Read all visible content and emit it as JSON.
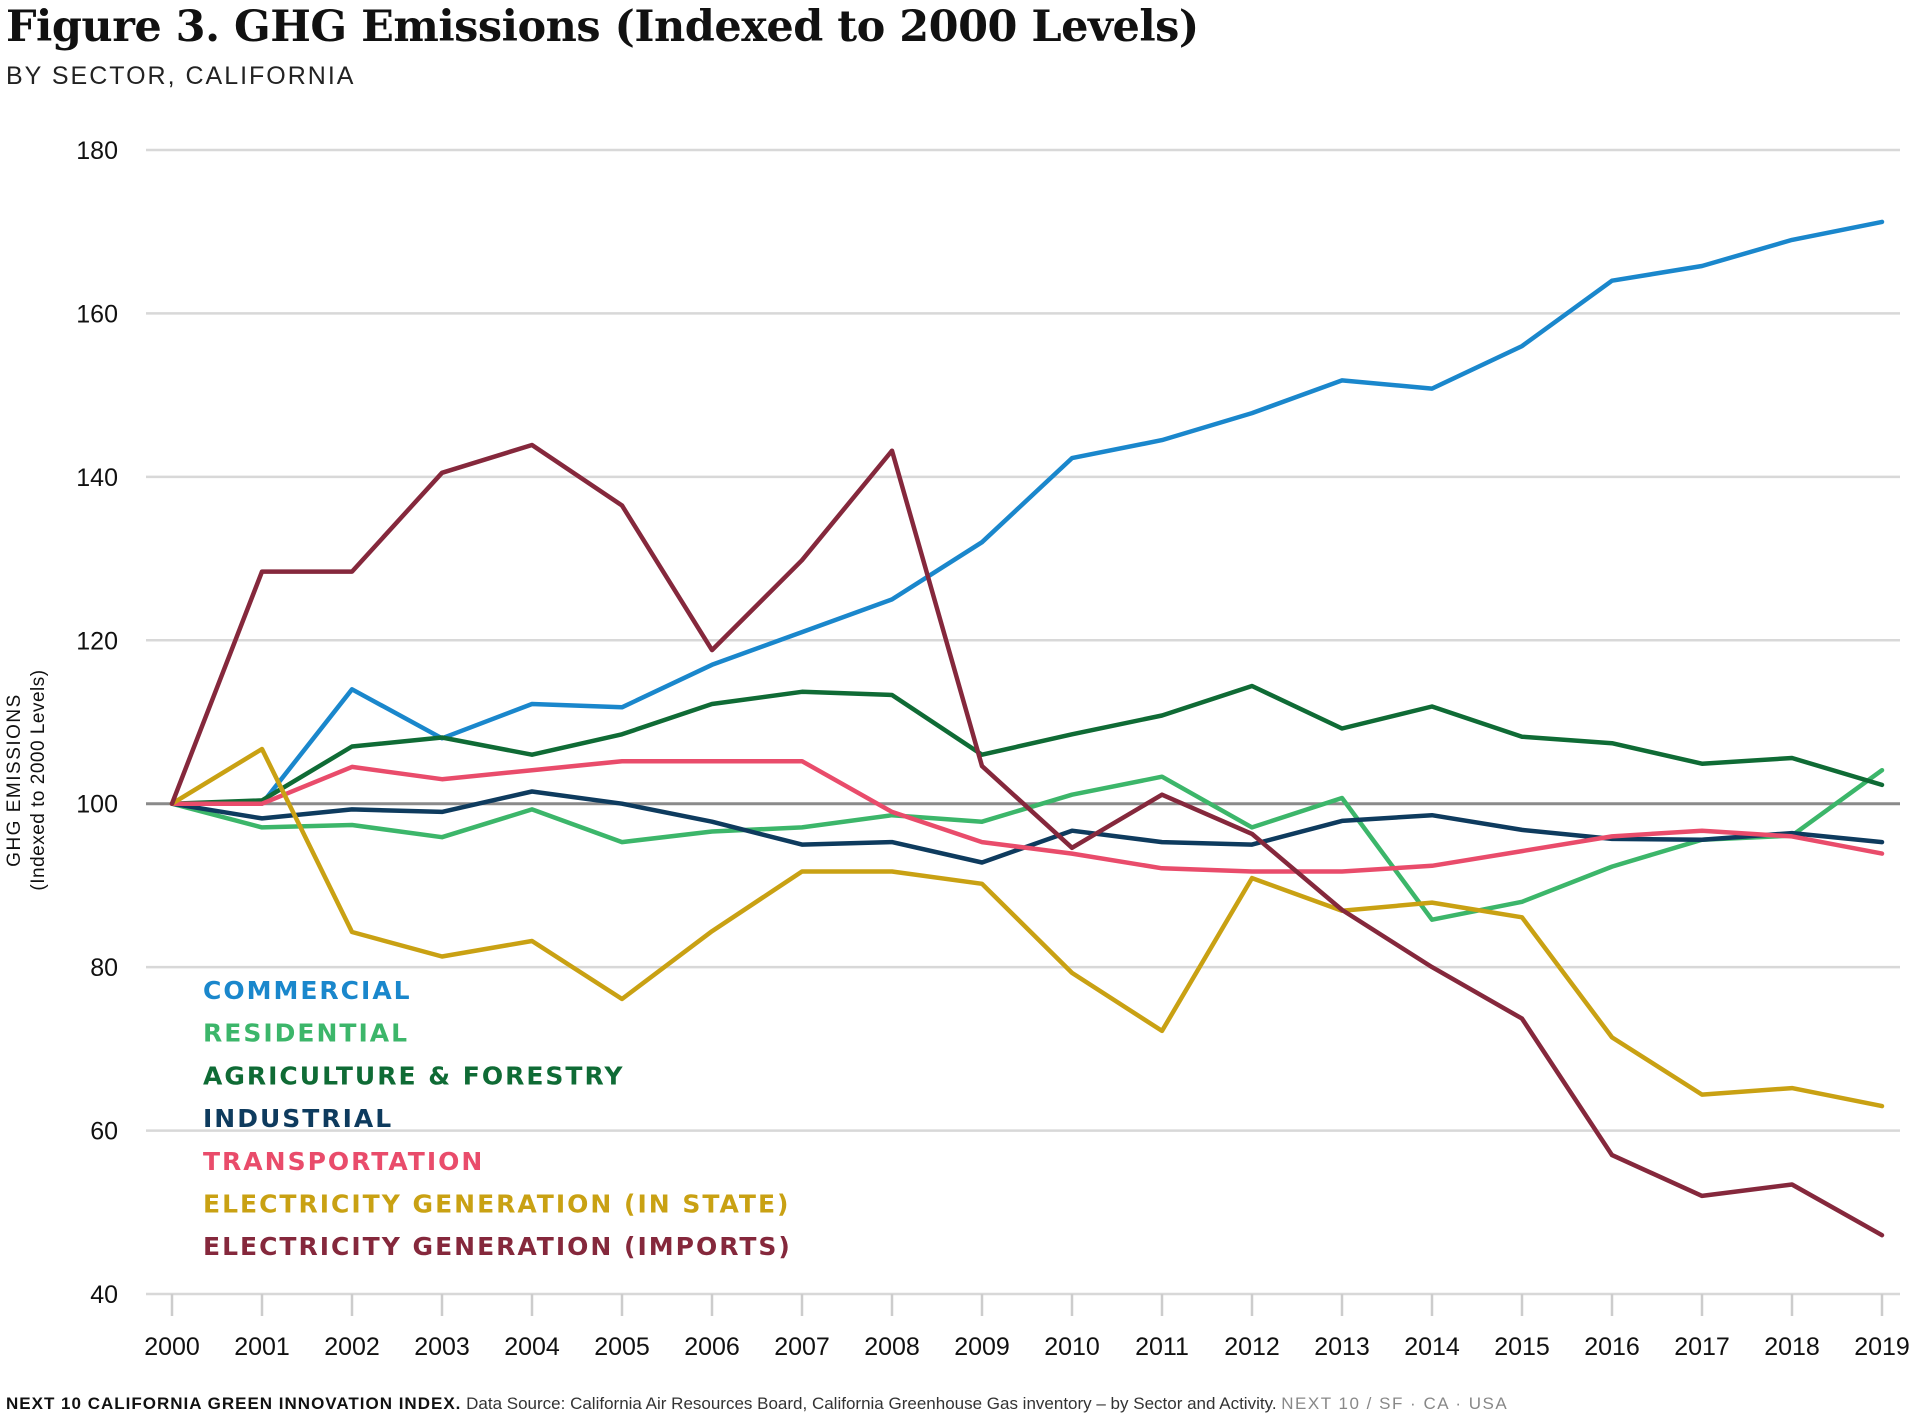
{
  "title": "Figure 3. GHG Emissions (Indexed to 2000 Levels)",
  "subtitle": "BY SECTOR, CALIFORNIA",
  "footer": {
    "brand": "NEXT 10 CALIFORNIA GREEN INNOVATION INDEX.",
    "source": "Data Source: California Air Resources Board, California Greenhouse Gas inventory – by Sector and Activity.",
    "site": "NEXT 10  /  SF · CA · USA"
  },
  "chart_data": {
    "type": "line",
    "title": "Figure 3. GHG Emissions (Indexed to 2000 Levels)",
    "subtitle": "BY SECTOR, CALIFORNIA",
    "ylabel": "GHG EMISSIONS",
    "ylabel_sub": "(Indexed to 2000 Levels)",
    "xlabel": "",
    "ylim": [
      40,
      180
    ],
    "yticks": [
      40,
      60,
      80,
      100,
      120,
      140,
      160,
      180
    ],
    "reference_line": 100,
    "grid": true,
    "legend_position": "bottom-left",
    "x": [
      "2000",
      "2001",
      "2002",
      "2003",
      "2004",
      "2005",
      "2006",
      "2007",
      "2008",
      "2009",
      "2010",
      "2011",
      "2012",
      "2013",
      "2014",
      "2015",
      "2016",
      "2017",
      "2018",
      "2019"
    ],
    "series": [
      {
        "name": "COMMERCIAL",
        "color": "#1a87cc",
        "values": [
          100,
          100,
          114,
          108,
          112.2,
          111.8,
          117,
          121,
          125,
          132,
          142.3,
          144.5,
          147.8,
          151.8,
          150.8,
          156,
          164,
          165.8,
          169,
          171.2
        ]
      },
      {
        "name": "RESIDENTIAL",
        "color": "#3cb66a",
        "values": [
          100,
          97.1,
          97.4,
          95.9,
          99.3,
          95.3,
          96.6,
          97.1,
          98.6,
          97.8,
          101.1,
          103.3,
          97.1,
          100.7,
          85.8,
          88,
          92.3,
          95.6,
          96.1,
          104.1
        ]
      },
      {
        "name": "AGRICULTURE & FORESTRY",
        "color": "#0f6b35",
        "values": [
          100,
          100.4,
          107,
          108.1,
          106,
          108.5,
          112.2,
          113.7,
          113.3,
          106,
          108.5,
          110.8,
          114.4,
          109.2,
          111.9,
          108.2,
          107.4,
          104.9,
          105.6,
          102.3
        ]
      },
      {
        "name": "INDUSTRIAL",
        "color": "#0e3b5e",
        "values": [
          100,
          98.2,
          99.3,
          99,
          101.5,
          100,
          97.8,
          95,
          95.3,
          92.8,
          96.7,
          95.3,
          95,
          97.9,
          98.6,
          96.8,
          95.7,
          95.6,
          96.4,
          95.3
        ]
      },
      {
        "name": "TRANSPORTATION",
        "color": "#e94c6b",
        "values": [
          100,
          100,
          104.5,
          103,
          104.1,
          105.2,
          105.2,
          105.2,
          99,
          95.3,
          93.9,
          92.1,
          91.7,
          91.7,
          92.4,
          94.2,
          96,
          96.7,
          96,
          93.9
        ]
      },
      {
        "name": "ELECTRICITY GENERATION (IN STATE)",
        "color": "#c9a113",
        "values": [
          100,
          106.7,
          84.3,
          81.3,
          83.2,
          76.1,
          84.4,
          91.7,
          91.7,
          90.2,
          79.3,
          72.2,
          90.9,
          86.9,
          87.9,
          86.1,
          71.4,
          64.4,
          65.2,
          63
        ]
      },
      {
        "name": "ELECTRICITY GENERATION (IMPORTS)",
        "color": "#85283c",
        "values": [
          100,
          128.4,
          128.4,
          140.5,
          143.9,
          136.5,
          118.8,
          129.8,
          143.2,
          104.6,
          94.6,
          101.1,
          96.3,
          87,
          80,
          73.7,
          57,
          52,
          53.4,
          47.2
        ]
      }
    ]
  }
}
